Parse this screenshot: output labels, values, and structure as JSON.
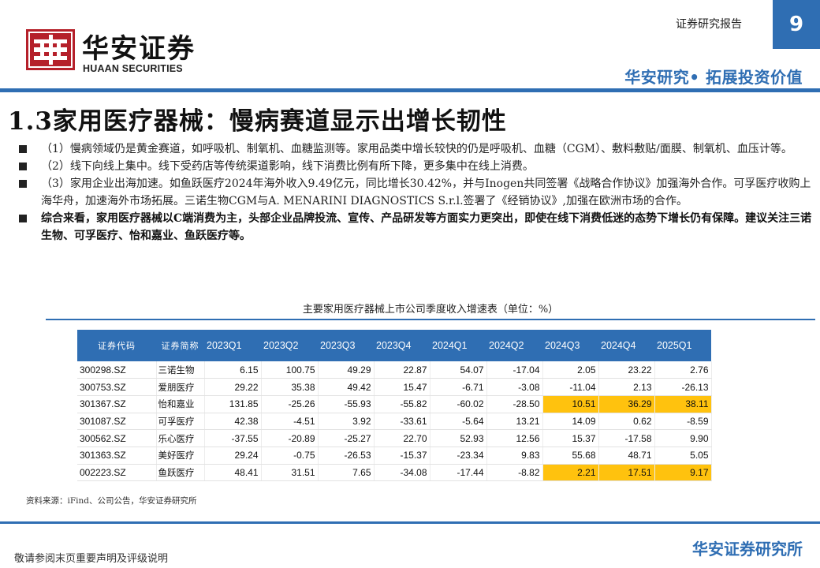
{
  "header": {
    "brand_cn": "华安证券",
    "brand_en": "HUAAN SECURITIES",
    "report_type": "证券研究报告",
    "page_number": "9",
    "slogan": "华安研究• 拓展投资价值",
    "brand_color": "#b5202a",
    "accent_color": "#2f6eb3"
  },
  "title": "1.3家用医疗器械：慢病赛道显示出增长韧性",
  "bullets": [
    {
      "text": "（1）慢病领域仍是黄金赛道，如呼吸机、制氧机、血糖监测等。家用品类中增长较快的仍是呼吸机、血糖（CGM）、敷料敷贴/面膜、制氧机、血压计等。",
      "bold": false
    },
    {
      "text": "（2）线下向线上集中。线下受药店等传统渠道影响，线下消费比例有所下降，更多集中在线上消费。",
      "bold": false
    },
    {
      "text": "（3）家用企业出海加速。如鱼跃医疗2024年海外收入9.49亿元，同比增长30.42%，并与Inogen共同签署《战略合作协议》加强海外合作。可孚医疗收购上海华舟，加速海外市场拓展。三诺生物CGM与A. MENARINI DIAGNOSTICS S.r.l.签署了《经销协议》,加强在欧洲市场的合作。",
      "bold": false
    },
    {
      "text": "综合来看，家用医疗器械以C端消费为主，头部企业品牌投流、宣传、产品研发等方面实力更突出，即使在线下消费低迷的态势下增长仍有保障。建议关注三诺生物、可孚医疗、怡和嘉业、鱼跃医疗等。",
      "bold": true
    }
  ],
  "table": {
    "caption": "主要家用医疗器械上市公司季度收入增速表（单位：%）",
    "headers": [
      "证券代码",
      "证券简称",
      "2023Q1",
      "2023Q2",
      "2023Q3",
      "2023Q4",
      "2024Q1",
      "2024Q2",
      "2024Q3",
      "2024Q4",
      "2025Q1"
    ],
    "highlight_color": "#ffc20e",
    "rows": [
      {
        "code": "300298.SZ",
        "name": "三诺生物",
        "values": [
          "6.15",
          "100.75",
          "49.29",
          "22.87",
          "54.07",
          "-17.04",
          "2.05",
          "23.22",
          "2.76"
        ],
        "highlight": []
      },
      {
        "code": "300753.SZ",
        "name": "爱朋医疗",
        "values": [
          "29.22",
          "35.38",
          "49.42",
          "15.47",
          "-6.71",
          "-3.08",
          "-11.04",
          "2.13",
          "-26.13"
        ],
        "highlight": []
      },
      {
        "code": "301367.SZ",
        "name": "怡和嘉业",
        "values": [
          "131.85",
          "-25.26",
          "-55.93",
          "-55.82",
          "-60.02",
          "-28.50",
          "10.51",
          "36.29",
          "38.11"
        ],
        "highlight": [
          6,
          7,
          8
        ]
      },
      {
        "code": "301087.SZ",
        "name": "可孚医疗",
        "values": [
          "42.38",
          "-4.51",
          "3.92",
          "-33.61",
          "-5.64",
          "13.21",
          "14.09",
          "0.62",
          "-8.59"
        ],
        "highlight": []
      },
      {
        "code": "300562.SZ",
        "name": "乐心医疗",
        "values": [
          "-37.55",
          "-20.89",
          "-25.27",
          "22.70",
          "52.93",
          "12.56",
          "15.37",
          "-17.58",
          "9.90"
        ],
        "highlight": []
      },
      {
        "code": "301363.SZ",
        "name": "美好医疗",
        "values": [
          "29.24",
          "-0.75",
          "-26.53",
          "-15.37",
          "-23.34",
          "9.83",
          "55.68",
          "48.71",
          "5.05"
        ],
        "highlight": []
      },
      {
        "code": "002223.SZ",
        "name": "鱼跃医疗",
        "values": [
          "48.41",
          "31.51",
          "7.65",
          "-34.08",
          "-17.44",
          "-8.82",
          "2.21",
          "17.51",
          "9.17"
        ],
        "highlight": [
          6,
          7,
          8
        ]
      }
    ],
    "source": "资料来源：iFind、公司公告，华安证券研究所"
  },
  "footer": {
    "disclaimer": "敬请参阅末页重要声明及评级说明",
    "brand": "华安证券研究所"
  }
}
